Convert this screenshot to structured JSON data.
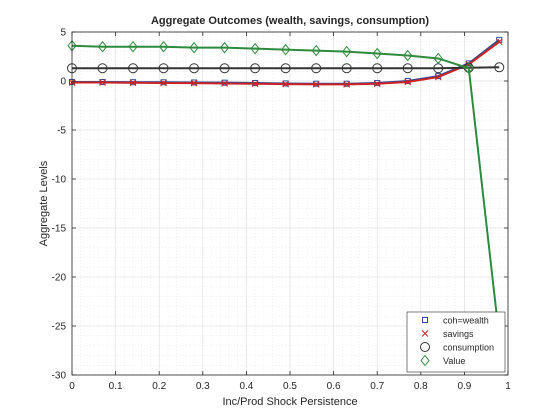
{
  "chart_data": {
    "type": "line",
    "title": "Aggregate Outcomes (wealth, savings, consumption)",
    "xlabel": "Inc/Prod Shock Persistence",
    "ylabel": "Aggregate Levels",
    "xlim": [
      0,
      1
    ],
    "ylim": [
      -30,
      5
    ],
    "xticks": [
      "0",
      "0.1",
      "0.2",
      "0.3",
      "0.4",
      "0.5",
      "0.6",
      "0.7",
      "0.8",
      "0.9",
      "1"
    ],
    "yticks": [
      "5",
      "0",
      "-5",
      "-10",
      "-15",
      "-20",
      "-25",
      "-30"
    ],
    "grid": true,
    "minor_grid": true,
    "legend_position": "bottom-right",
    "x": [
      0,
      0.07,
      0.14,
      0.21,
      0.28,
      0.35,
      0.42,
      0.49,
      0.56,
      0.63,
      0.7,
      0.77,
      0.84,
      0.91,
      0.98
    ],
    "series": [
      {
        "name": "coh=wealth",
        "marker": "square",
        "color": "#2a4d9c",
        "values": [
          -0.1,
          -0.1,
          -0.12,
          -0.13,
          -0.15,
          -0.17,
          -0.2,
          -0.25,
          -0.28,
          -0.28,
          -0.2,
          0.0,
          0.5,
          1.8,
          4.2
        ]
      },
      {
        "name": "savings",
        "marker": "x",
        "color": "#cc2222",
        "values": [
          -0.15,
          -0.15,
          -0.18,
          -0.2,
          -0.22,
          -0.25,
          -0.28,
          -0.32,
          -0.35,
          -0.35,
          -0.28,
          -0.1,
          0.4,
          1.7,
          4.0
        ]
      },
      {
        "name": "consumption",
        "marker": "circle",
        "color": "#333333",
        "values": [
          1.3,
          1.3,
          1.3,
          1.3,
          1.3,
          1.3,
          1.3,
          1.3,
          1.3,
          1.3,
          1.3,
          1.3,
          1.3,
          1.35,
          1.4
        ]
      },
      {
        "name": "Value",
        "marker": "diamond",
        "color": "#2e8b3d",
        "values": [
          3.6,
          3.5,
          3.5,
          3.5,
          3.4,
          3.4,
          3.3,
          3.2,
          3.1,
          3.0,
          2.8,
          2.6,
          2.3,
          1.3,
          -26.2
        ]
      }
    ]
  }
}
